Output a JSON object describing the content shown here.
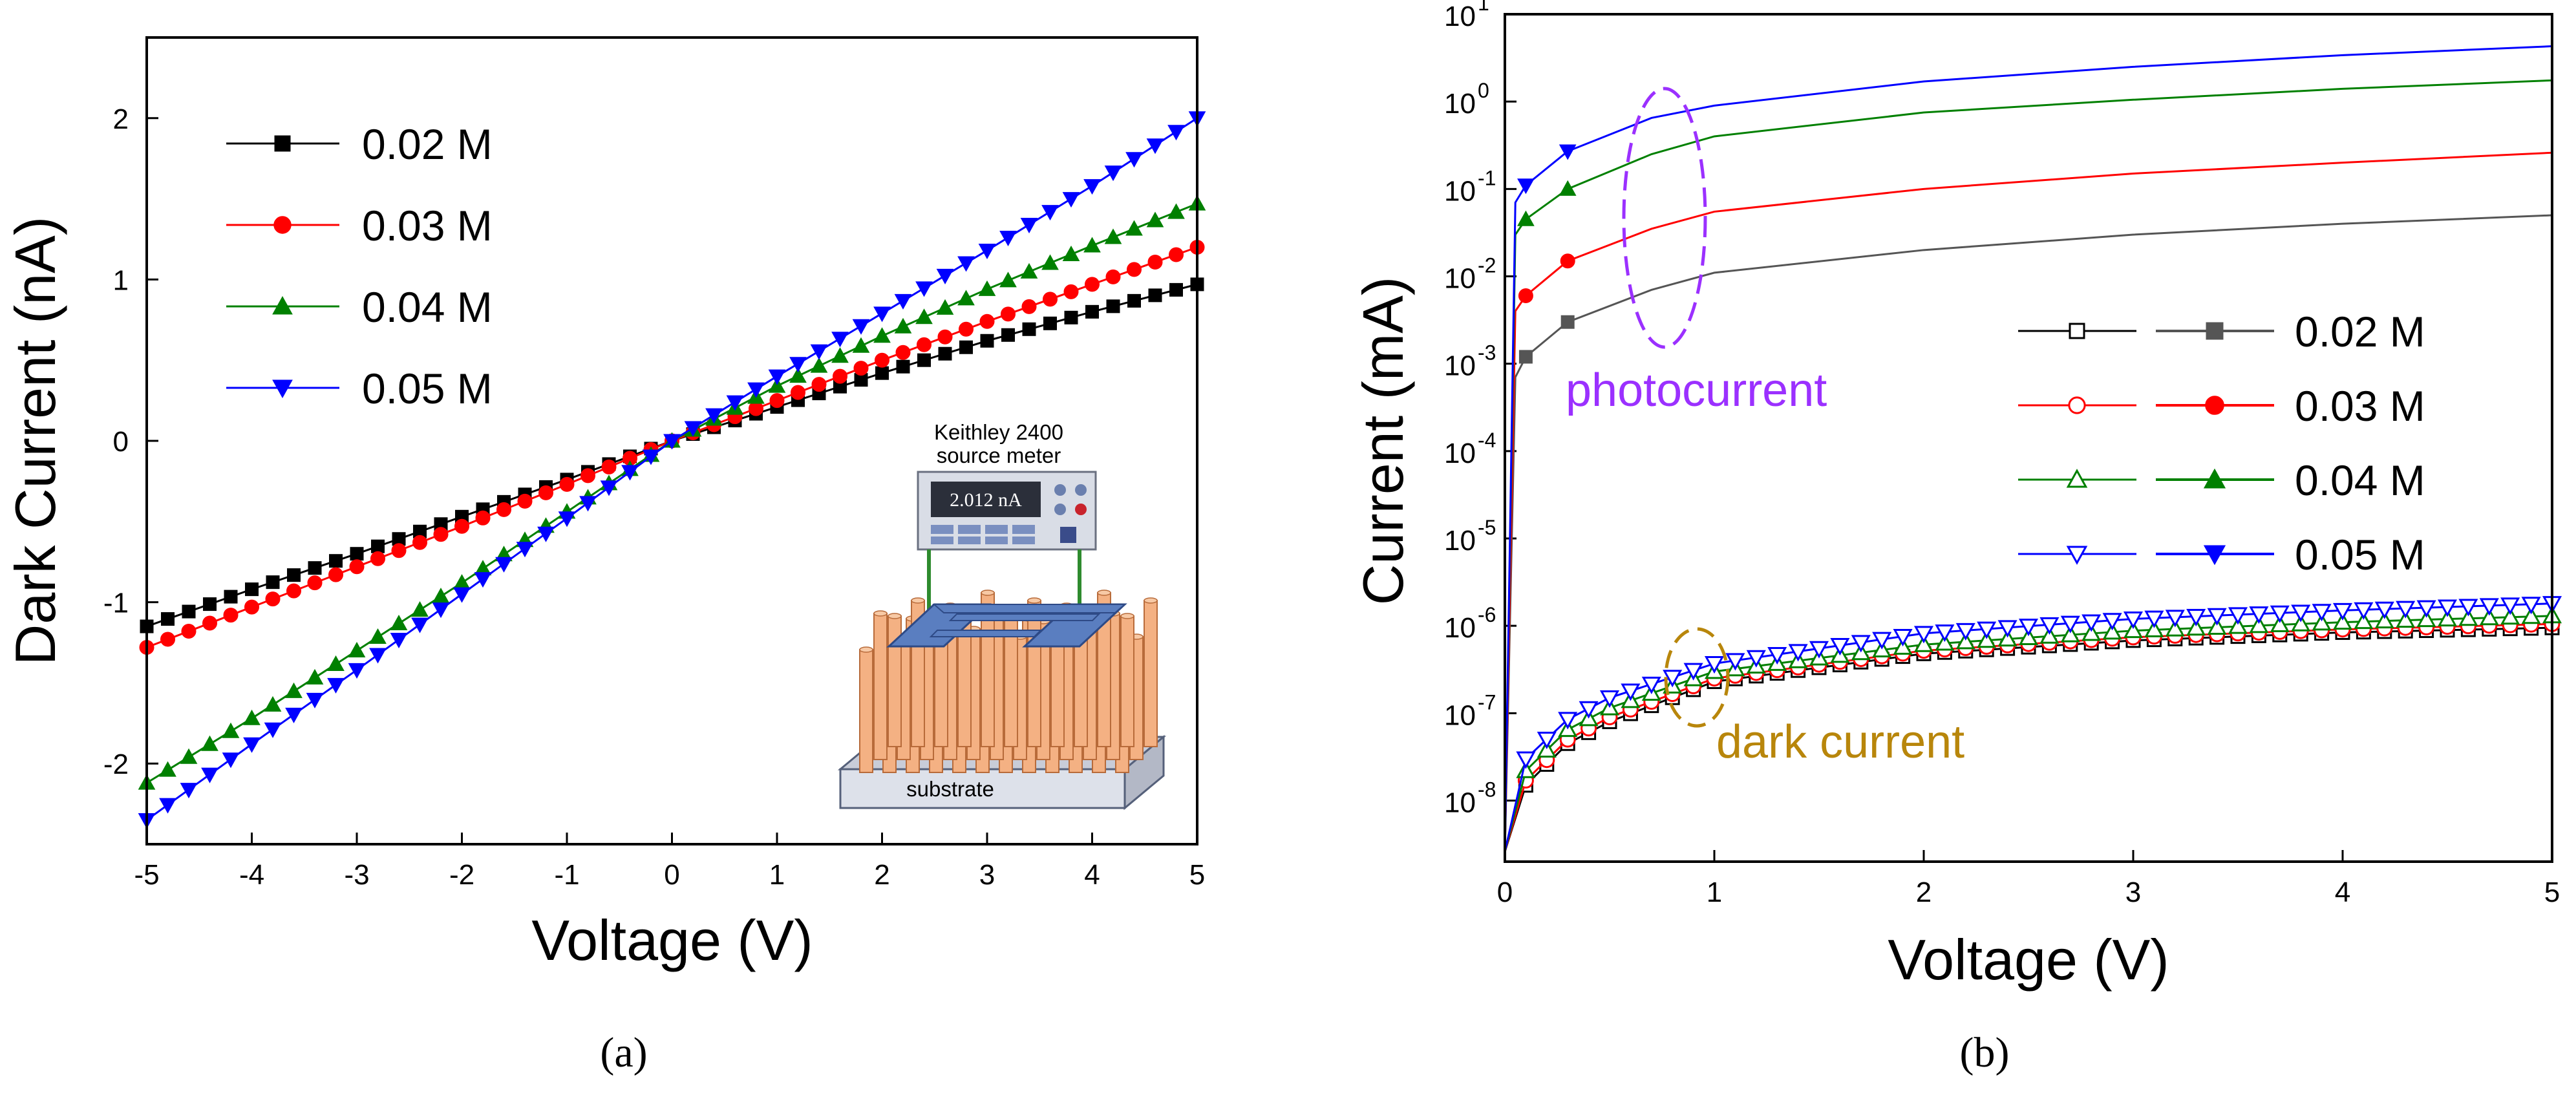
{
  "chart_data": [
    {
      "type": "line",
      "panel_label": "(a)",
      "xlabel": "Voltage (V)",
      "ylabel": "Dark Current (nA)",
      "xlim": [
        -5,
        5
      ],
      "ylim": [
        -2.5,
        2.5
      ],
      "xticks": [
        -5,
        -4,
        -3,
        -2,
        -1,
        0,
        1,
        2,
        3,
        4,
        5
      ],
      "yticks": [
        -2,
        -1,
        0,
        1,
        2
      ],
      "xtick_labels": [
        "-5",
        "-4",
        "-3",
        "-2",
        "-1",
        "0",
        "1",
        "2",
        "3",
        "4",
        "5"
      ],
      "ytick_labels": [
        "-2",
        "-1",
        "0",
        "1",
        "2"
      ],
      "legend_position": "top-left",
      "series": [
        {
          "name": "0.02 M",
          "color": "#000000",
          "marker": "square",
          "x": [
            -5,
            -4,
            -3,
            -2,
            -1,
            0,
            1,
            2,
            3,
            4,
            5
          ],
          "y": [
            -1.15,
            -0.92,
            -0.7,
            -0.47,
            -0.24,
            0,
            0.21,
            0.42,
            0.62,
            0.8,
            0.97
          ]
        },
        {
          "name": "0.03 M",
          "color": "#ff0000",
          "marker": "circle",
          "x": [
            -5,
            -4,
            -3,
            -2,
            -1,
            0,
            1,
            2,
            3,
            4,
            5
          ],
          "y": [
            -1.28,
            -1.03,
            -0.78,
            -0.53,
            -0.27,
            0,
            0.25,
            0.5,
            0.74,
            0.97,
            1.2
          ]
        },
        {
          "name": "0.04 M",
          "color": "#008000",
          "marker": "triangle-up",
          "x": [
            -5,
            -4,
            -3,
            -2,
            -1,
            0,
            1,
            2,
            3,
            4,
            5
          ],
          "y": [
            -2.12,
            -1.72,
            -1.3,
            -0.88,
            -0.44,
            0,
            0.34,
            0.65,
            0.94,
            1.21,
            1.47
          ]
        },
        {
          "name": "0.05 M",
          "color": "#0000ff",
          "marker": "triangle-down",
          "x": [
            -5,
            -4,
            -3,
            -2,
            -1,
            0,
            1,
            2,
            3,
            4,
            5
          ],
          "y": [
            -2.35,
            -1.88,
            -1.42,
            -0.95,
            -0.48,
            0,
            0.4,
            0.79,
            1.18,
            1.58,
            2.0
          ]
        }
      ],
      "inset": {
        "instrument_label_line1": "Keithley 2400",
        "instrument_label_line2": "source meter",
        "display_reading": "2.012 nA",
        "substrate_label": "substrate"
      }
    },
    {
      "type": "line",
      "panel_label": "(b)",
      "xlabel": "Voltage (V)",
      "ylabel": "Current (mA)",
      "xlim": [
        0,
        5
      ],
      "yscale": "log",
      "ylim": [
        2e-09,
        10
      ],
      "xticks": [
        0,
        1,
        2,
        3,
        4,
        5
      ],
      "xtick_labels": [
        "0",
        "1",
        "2",
        "3",
        "4",
        "5"
      ],
      "ytick_exponents": [
        -8,
        -7,
        -6,
        -5,
        -4,
        -3,
        -2,
        -1,
        0,
        1
      ],
      "ytick_base": "10",
      "ytick_exp_labels": [
        "-8",
        "-7",
        "-6",
        "-5",
        "-4",
        "-3",
        "-2",
        "-1",
        "0",
        "1"
      ],
      "legend_position": "center-right",
      "annotations": {
        "photocurrent": {
          "text": "photocurrent",
          "color": "#9b30ff"
        },
        "dark_current": {
          "text": "dark current",
          "color": "#b8860b"
        }
      },
      "series": [
        {
          "name": "0.02 M",
          "kind": "dark",
          "color": "#000000",
          "marker": "square-open",
          "x": [
            0.1,
            0.3,
            0.5,
            1,
            2,
            3,
            4,
            5
          ],
          "y": [
            1.5e-08,
            4.5e-08,
            8e-08,
            2.3e-07,
            4.8e-07,
            6.8e-07,
            8.4e-07,
            9.5e-07
          ]
        },
        {
          "name": "0.03 M",
          "kind": "dark",
          "color": "#ff0000",
          "marker": "circle-open",
          "x": [
            0.1,
            0.3,
            0.5,
            1,
            2,
            3,
            4,
            5
          ],
          "y": [
            1.7e-08,
            5e-08,
            9e-08,
            2.5e-07,
            5.2e-07,
            7.4e-07,
            9.1e-07,
            1.05e-06
          ]
        },
        {
          "name": "0.04 M",
          "kind": "dark",
          "color": "#008000",
          "marker": "triangle-up-open",
          "x": [
            0.1,
            0.3,
            0.5,
            1,
            2,
            3,
            4,
            5
          ],
          "y": [
            2.2e-08,
            6.5e-08,
            1.15e-07,
            3e-07,
            6.1e-07,
            8.8e-07,
            1.1e-06,
            1.3e-06
          ]
        },
        {
          "name": "0.05 M",
          "kind": "dark",
          "color": "#0000ff",
          "marker": "triangle-down-open",
          "x": [
            0.1,
            0.3,
            0.5,
            1,
            2,
            3,
            4,
            5
          ],
          "y": [
            3e-08,
            8.5e-08,
            1.5e-07,
            3.7e-07,
            8.2e-07,
            1.2e-06,
            1.5e-06,
            1.8e-06
          ]
        },
        {
          "name": "0.02 M",
          "kind": "photo",
          "color": "#555555",
          "marker": "square",
          "x": [
            0.05,
            0.1,
            0.3,
            0.7,
            1,
            2,
            3,
            4,
            5
          ],
          "y": [
            0.0007,
            0.0012,
            0.003,
            0.007,
            0.011,
            0.02,
            0.03,
            0.04,
            0.05
          ]
        },
        {
          "name": "0.03 M",
          "kind": "photo",
          "color": "#ff0000",
          "marker": "circle",
          "x": [
            0.05,
            0.1,
            0.3,
            0.7,
            1,
            2,
            3,
            4,
            5
          ],
          "y": [
            0.004,
            0.006,
            0.015,
            0.035,
            0.055,
            0.1,
            0.15,
            0.2,
            0.26
          ]
        },
        {
          "name": "0.04 M",
          "kind": "photo",
          "color": "#008000",
          "marker": "triangle-up",
          "x": [
            0.05,
            0.1,
            0.3,
            0.7,
            1,
            2,
            3,
            4,
            5
          ],
          "y": [
            0.03,
            0.045,
            0.1,
            0.25,
            0.4,
            0.75,
            1.05,
            1.4,
            1.75
          ]
        },
        {
          "name": "0.05 M",
          "kind": "photo",
          "color": "#0000ff",
          "marker": "triangle-down",
          "x": [
            0.05,
            0.1,
            0.3,
            0.7,
            1,
            2,
            3,
            4,
            5
          ],
          "y": [
            0.07,
            0.11,
            0.27,
            0.65,
            0.9,
            1.7,
            2.5,
            3.4,
            4.3
          ]
        }
      ]
    }
  ]
}
